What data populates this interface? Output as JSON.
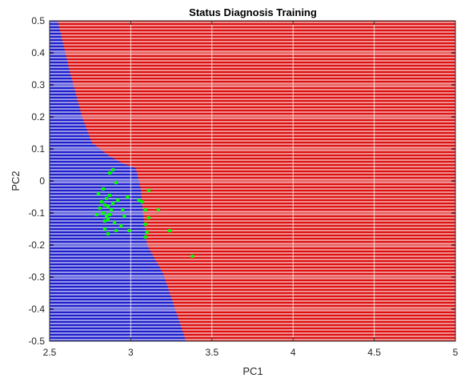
{
  "chart_data": {
    "type": "scatter",
    "title": "Status Diagnosis Training",
    "xlabel": "PC1",
    "ylabel": "PC2",
    "xlim": [
      2.5,
      5
    ],
    "ylim": [
      -0.5,
      0.5
    ],
    "xticks": [
      2.5,
      3,
      3.5,
      4,
      4.5,
      5
    ],
    "yticks": [
      0.5,
      0.4,
      0.3,
      0.2,
      0.1,
      0,
      -0.1,
      -0.2,
      -0.3,
      -0.4,
      -0.5
    ],
    "xtick_labels": [
      "2.5",
      "3",
      "3.5",
      "4",
      "4.5",
      "5"
    ],
    "ytick_labels": [
      "0.5",
      "0.4",
      "0.3",
      "0.2",
      "0.1",
      "0",
      "-0.1",
      "-0.2",
      "-0.3",
      "-0.4",
      "-0.5"
    ],
    "grid": true,
    "regions": {
      "colors": {
        "class_a": "#1f1fcc",
        "class_b": "#dd1111"
      },
      "boundary": [
        {
          "x": 2.55,
          "y": 0.5
        },
        {
          "x": 2.62,
          "y": 0.35
        },
        {
          "x": 2.7,
          "y": 0.2
        },
        {
          "x": 2.76,
          "y": 0.12
        },
        {
          "x": 2.86,
          "y": 0.08
        },
        {
          "x": 2.95,
          "y": 0.055
        },
        {
          "x": 3.03,
          "y": 0.04
        },
        {
          "x": 3.06,
          "y": -0.02
        },
        {
          "x": 3.08,
          "y": -0.12
        },
        {
          "x": 3.1,
          "y": -0.2
        },
        {
          "x": 3.2,
          "y": -0.29
        },
        {
          "x": 3.34,
          "y": -0.5
        }
      ]
    },
    "series": [
      {
        "color": "#00ff00",
        "points": [
          {
            "x": 2.87,
            "y": 0.025
          },
          {
            "x": 2.89,
            "y": 0.035
          },
          {
            "x": 2.91,
            "y": -0.005
          },
          {
            "x": 2.83,
            "y": -0.025
          },
          {
            "x": 2.8,
            "y": -0.04
          },
          {
            "x": 2.87,
            "y": -0.045
          },
          {
            "x": 2.98,
            "y": -0.05
          },
          {
            "x": 2.85,
            "y": -0.055
          },
          {
            "x": 2.92,
            "y": -0.06
          },
          {
            "x": 2.82,
            "y": -0.065
          },
          {
            "x": 2.89,
            "y": -0.07
          },
          {
            "x": 2.84,
            "y": -0.075
          },
          {
            "x": 2.86,
            "y": -0.08
          },
          {
            "x": 2.81,
            "y": -0.085
          },
          {
            "x": 2.88,
            "y": -0.09
          },
          {
            "x": 2.95,
            "y": -0.09
          },
          {
            "x": 2.83,
            "y": -0.1
          },
          {
            "x": 2.87,
            "y": -0.105
          },
          {
            "x": 2.79,
            "y": -0.105
          },
          {
            "x": 2.85,
            "y": -0.11
          },
          {
            "x": 2.96,
            "y": -0.11
          },
          {
            "x": 2.86,
            "y": -0.12
          },
          {
            "x": 2.84,
            "y": -0.125
          },
          {
            "x": 2.9,
            "y": -0.13
          },
          {
            "x": 2.94,
            "y": -0.14
          },
          {
            "x": 2.84,
            "y": -0.15
          },
          {
            "x": 2.91,
            "y": -0.155
          },
          {
            "x": 2.99,
            "y": -0.155
          },
          {
            "x": 2.86,
            "y": -0.165
          },
          {
            "x": 3.05,
            "y": -0.06
          },
          {
            "x": 3.07,
            "y": -0.065
          },
          {
            "x": 3.11,
            "y": -0.03
          },
          {
            "x": 3.09,
            "y": -0.09
          },
          {
            "x": 3.17,
            "y": -0.09
          },
          {
            "x": 3.11,
            "y": -0.115
          },
          {
            "x": 3.09,
            "y": -0.135
          },
          {
            "x": 3.1,
            "y": -0.16
          },
          {
            "x": 3.09,
            "y": -0.175
          },
          {
            "x": 3.24,
            "y": -0.155
          },
          {
            "x": 3.38,
            "y": -0.235
          }
        ]
      }
    ]
  }
}
